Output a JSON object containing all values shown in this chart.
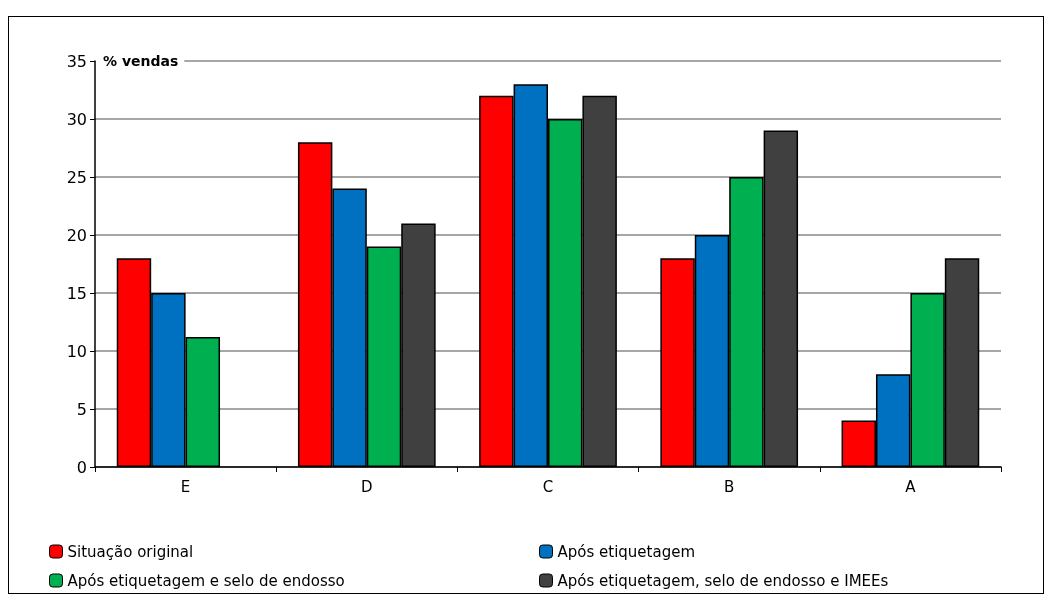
{
  "chart_data": {
    "type": "bar",
    "ylabel": "% vendas",
    "categories": [
      "E",
      "D",
      "C",
      "B",
      "A"
    ],
    "series": [
      {
        "name": "Situação original",
        "color": "#ff0000",
        "values": [
          18,
          28,
          32,
          18,
          4
        ]
      },
      {
        "name": "Após etiquetagem",
        "color": "#0070c0",
        "values": [
          15,
          24,
          33,
          20,
          8
        ]
      },
      {
        "name": "Após etiquetagem e selo de endosso",
        "color": "#00b050",
        "values": [
          11.2,
          19,
          30,
          25,
          15
        ]
      },
      {
        "name": "Após etiquetagem, selo de endosso e IMEEs",
        "color": "#404040",
        "values": [
          null,
          21,
          32,
          29,
          18
        ]
      }
    ],
    "ylim": [
      0,
      35
    ],
    "yticks": [
      0,
      5,
      10,
      15,
      20,
      25,
      30,
      35
    ],
    "grid": "y",
    "legend": "bottom"
  }
}
